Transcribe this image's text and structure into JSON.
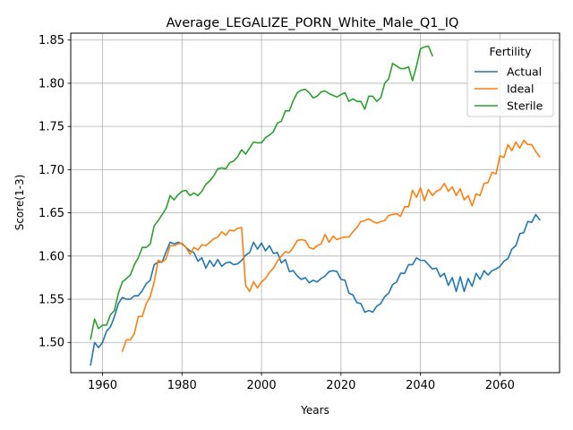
{
  "chart_data": {
    "type": "line",
    "title": "Average_LEGALIZE_PORN_White_Male_Q1_IQ",
    "xlabel": "Years",
    "ylabel": "Score(1-3)",
    "xlim": [
      1952,
      2075
    ],
    "ylim": [
      1.465,
      1.858
    ],
    "xticks": [
      1960,
      1980,
      2000,
      2020,
      2040,
      2060
    ],
    "yticks": [
      1.5,
      1.55,
      1.6,
      1.65,
      1.7,
      1.75,
      1.8,
      1.85
    ],
    "grid": true,
    "legend": {
      "title": "Fertility",
      "placement": "top-right"
    },
    "series": [
      {
        "name": "Actual",
        "color": "#1f77b4",
        "x": [
          1957,
          1958,
          1959,
          1960,
          1961,
          1962,
          1963,
          1964,
          1965,
          1966,
          1967,
          1968,
          1969,
          1970,
          1971,
          1972,
          1973,
          1974,
          1975,
          1976,
          1977,
          1978,
          1979,
          1980,
          1981,
          1982,
          1983,
          1984,
          1985,
          1986,
          1987,
          1988,
          1989,
          1990,
          1991,
          1992,
          1993,
          1994,
          1995,
          1996,
          1997,
          1998,
          1999,
          2000,
          2001,
          2002,
          2003,
          2004,
          2005,
          2006,
          2007,
          2008,
          2009,
          2010,
          2011,
          2012,
          2013,
          2014,
          2015,
          2016,
          2017,
          2018,
          2019,
          2020,
          2021,
          2022,
          2023,
          2024,
          2025,
          2026,
          2027,
          2028,
          2029,
          2030,
          2031,
          2032,
          2033,
          2034,
          2035,
          2036,
          2037,
          2038,
          2039,
          2040,
          2041,
          2042,
          2043,
          2044,
          2045,
          2046,
          2047,
          2048,
          2049,
          2050,
          2051,
          2052,
          2053,
          2054,
          2055,
          2056,
          2057,
          2058,
          2059,
          2060,
          2061,
          2062,
          2063,
          2064,
          2065,
          2066,
          2067,
          2068,
          2069,
          2070
        ],
        "values": [
          1.474,
          1.5,
          1.494,
          1.5,
          1.513,
          1.518,
          1.53,
          1.545,
          1.552,
          1.55,
          1.55,
          1.554,
          1.554,
          1.56,
          1.568,
          1.572,
          1.59,
          1.593,
          1.593,
          1.605,
          1.616,
          1.614,
          1.616,
          1.614,
          1.61,
          1.606,
          1.604,
          1.594,
          1.598,
          1.586,
          1.595,
          1.588,
          1.596,
          1.588,
          1.592,
          1.593,
          1.59,
          1.591,
          1.595,
          1.601,
          1.604,
          1.616,
          1.608,
          1.615,
          1.606,
          1.612,
          1.603,
          1.604,
          1.592,
          1.596,
          1.582,
          1.583,
          1.577,
          1.573,
          1.575,
          1.569,
          1.572,
          1.57,
          1.574,
          1.577,
          1.582,
          1.583,
          1.582,
          1.573,
          1.572,
          1.557,
          1.555,
          1.546,
          1.545,
          1.535,
          1.537,
          1.535,
          1.542,
          1.545,
          1.553,
          1.557,
          1.567,
          1.57,
          1.58,
          1.58,
          1.59,
          1.59,
          1.598,
          1.595,
          1.595,
          1.59,
          1.585,
          1.586,
          1.576,
          1.58,
          1.566,
          1.575,
          1.559,
          1.576,
          1.559,
          1.574,
          1.565,
          1.58,
          1.573,
          1.583,
          1.578,
          1.583,
          1.585,
          1.588,
          1.594,
          1.597,
          1.608,
          1.612,
          1.626,
          1.627,
          1.64,
          1.639,
          1.648,
          1.642
        ]
      },
      {
        "name": "Ideal",
        "color": "#ff7f0e",
        "x": [
          1965,
          1966,
          1967,
          1968,
          1969,
          1970,
          1971,
          1972,
          1973,
          1974,
          1975,
          1976,
          1977,
          1978,
          1979,
          1980,
          1981,
          1982,
          1983,
          1984,
          1985,
          1986,
          1987,
          1988,
          1989,
          1990,
          1991,
          1992,
          1993,
          1994,
          1995,
          1996,
          1997,
          1998,
          1999,
          2000,
          2001,
          2002,
          2003,
          2004,
          2005,
          2006,
          2007,
          2008,
          2009,
          2010,
          2011,
          2012,
          2013,
          2014,
          2015,
          2016,
          2017,
          2018,
          2019,
          2020,
          2021,
          2022,
          2023,
          2024,
          2025,
          2026,
          2027,
          2028,
          2029,
          2030,
          2031,
          2032,
          2033,
          2034,
          2035,
          2036,
          2037,
          2038,
          2039,
          2040,
          2041,
          2042,
          2043,
          2044,
          2045,
          2046,
          2047,
          2048,
          2049,
          2050,
          2051,
          2052,
          2053,
          2054,
          2055,
          2056,
          2057,
          2058,
          2059,
          2060,
          2061,
          2062,
          2063,
          2064,
          2065,
          2066,
          2067,
          2068,
          2069,
          2070
        ],
        "values": [
          1.49,
          1.503,
          1.503,
          1.51,
          1.53,
          1.53,
          1.545,
          1.553,
          1.57,
          1.595,
          1.593,
          1.597,
          1.612,
          1.612,
          1.614,
          1.615,
          1.61,
          1.602,
          1.61,
          1.607,
          1.613,
          1.612,
          1.616,
          1.62,
          1.622,
          1.628,
          1.624,
          1.63,
          1.629,
          1.632,
          1.633,
          1.566,
          1.559,
          1.57,
          1.563,
          1.57,
          1.574,
          1.581,
          1.586,
          1.594,
          1.6,
          1.605,
          1.604,
          1.61,
          1.618,
          1.619,
          1.618,
          1.61,
          1.608,
          1.612,
          1.614,
          1.625,
          1.616,
          1.623,
          1.619,
          1.621,
          1.622,
          1.622,
          1.628,
          1.633,
          1.64,
          1.641,
          1.643,
          1.64,
          1.638,
          1.64,
          1.641,
          1.647,
          1.648,
          1.649,
          1.646,
          1.657,
          1.657,
          1.676,
          1.668,
          1.679,
          1.664,
          1.677,
          1.67,
          1.675,
          1.677,
          1.684,
          1.675,
          1.68,
          1.67,
          1.678,
          1.665,
          1.67,
          1.658,
          1.672,
          1.67,
          1.684,
          1.685,
          1.697,
          1.695,
          1.716,
          1.714,
          1.729,
          1.722,
          1.732,
          1.725,
          1.734,
          1.729,
          1.729,
          1.721,
          1.715
        ]
      },
      {
        "name": "Sterile",
        "color": "#2ca02c",
        "x": [
          1957,
          1958,
          1959,
          1960,
          1961,
          1962,
          1963,
          1964,
          1965,
          1966,
          1967,
          1968,
          1969,
          1970,
          1971,
          1972,
          1973,
          1974,
          1975,
          1976,
          1977,
          1978,
          1979,
          1980,
          1981,
          1982,
          1983,
          1984,
          1985,
          1986,
          1987,
          1988,
          1989,
          1990,
          1991,
          1992,
          1993,
          1994,
          1995,
          1996,
          1997,
          1998,
          1999,
          2000,
          2001,
          2002,
          2003,
          2004,
          2005,
          2006,
          2007,
          2008,
          2009,
          2010,
          2011,
          2012,
          2013,
          2014,
          2015,
          2016,
          2017,
          2018,
          2019,
          2020,
          2021,
          2022,
          2023,
          2024,
          2025,
          2026,
          2027,
          2028,
          2029,
          2030,
          2031,
          2032,
          2033,
          2034,
          2035,
          2036,
          2037,
          2038,
          2039,
          2040,
          2041,
          2042,
          2043
        ],
        "values": [
          1.504,
          1.527,
          1.516,
          1.52,
          1.52,
          1.532,
          1.537,
          1.557,
          1.57,
          1.574,
          1.578,
          1.59,
          1.598,
          1.61,
          1.61,
          1.614,
          1.635,
          1.641,
          1.648,
          1.655,
          1.67,
          1.665,
          1.671,
          1.675,
          1.676,
          1.67,
          1.673,
          1.67,
          1.675,
          1.683,
          1.687,
          1.693,
          1.701,
          1.702,
          1.701,
          1.708,
          1.71,
          1.715,
          1.723,
          1.718,
          1.725,
          1.732,
          1.731,
          1.731,
          1.737,
          1.74,
          1.744,
          1.754,
          1.756,
          1.768,
          1.768,
          1.78,
          1.789,
          1.792,
          1.793,
          1.789,
          1.783,
          1.785,
          1.79,
          1.791,
          1.788,
          1.786,
          1.784,
          1.787,
          1.789,
          1.779,
          1.782,
          1.779,
          1.779,
          1.77,
          1.785,
          1.785,
          1.779,
          1.783,
          1.8,
          1.805,
          1.823,
          1.82,
          1.817,
          1.817,
          1.819,
          1.803,
          1.82,
          1.84,
          1.842,
          1.843,
          1.832
        ]
      }
    ]
  }
}
